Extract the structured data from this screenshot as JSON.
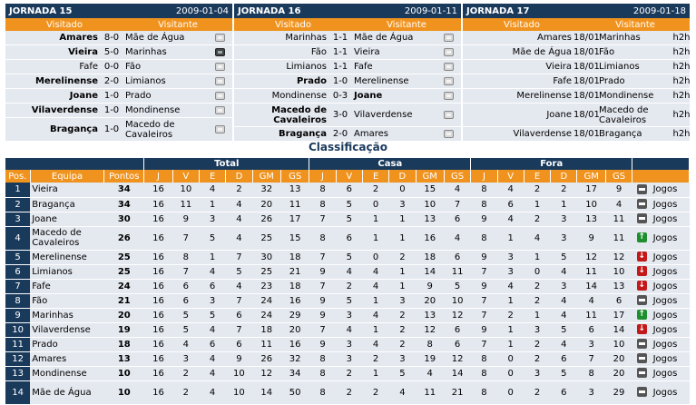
{
  "jornadas": [
    {
      "title": "JORNADA 15",
      "date": "2009-01-04",
      "col_home": "Visitado",
      "col_away": "Visitante",
      "games": [
        {
          "home": "Amares",
          "result": "8-0",
          "away": "Mãe de Água",
          "home_bold": true,
          "away_bold": false,
          "icon": "tv-off-icon",
          "tall": false
        },
        {
          "home": "Vieira",
          "result": "5-0",
          "away": "Marinhas",
          "home_bold": true,
          "away_bold": false,
          "icon": "tv-on-icon",
          "tall": false
        },
        {
          "home": "Fafe",
          "result": "0-0",
          "away": "Fão",
          "home_bold": false,
          "away_bold": false,
          "icon": "tv-off-icon",
          "tall": false
        },
        {
          "home": "Merelinense",
          "result": "2-0",
          "away": "Limianos",
          "home_bold": true,
          "away_bold": false,
          "icon": "tv-off-icon",
          "tall": false
        },
        {
          "home": "Joane",
          "result": "1-0",
          "away": "Prado",
          "home_bold": true,
          "away_bold": false,
          "icon": "tv-off-icon",
          "tall": false
        },
        {
          "home": "Vilaverdense",
          "result": "1-0",
          "away": "Mondinense",
          "home_bold": true,
          "away_bold": false,
          "icon": "tv-off-icon",
          "tall": false
        },
        {
          "home": "Bragança",
          "result": "1-0",
          "away": "Macedo de Cavaleiros",
          "home_bold": true,
          "away_bold": false,
          "icon": "tv-off-icon",
          "tall": true
        }
      ]
    },
    {
      "title": "JORNADA 16",
      "date": "2009-01-11",
      "col_home": "Visitado",
      "col_away": "Visitante",
      "games": [
        {
          "home": "Marinhas",
          "result": "1-1",
          "away": "Mãe de Água",
          "home_bold": false,
          "away_bold": false,
          "icon": "tv-off-icon",
          "tall": false
        },
        {
          "home": "Fão",
          "result": "1-1",
          "away": "Vieira",
          "home_bold": false,
          "away_bold": false,
          "icon": "tv-off-icon",
          "tall": false
        },
        {
          "home": "Limianos",
          "result": "1-1",
          "away": "Fafe",
          "home_bold": false,
          "away_bold": false,
          "icon": "tv-off-icon",
          "tall": false
        },
        {
          "home": "Prado",
          "result": "1-0",
          "away": "Merelinense",
          "home_bold": true,
          "away_bold": false,
          "icon": "tv-off-icon",
          "tall": false
        },
        {
          "home": "Mondinense",
          "result": "0-3",
          "away": "Joane",
          "home_bold": false,
          "away_bold": true,
          "icon": "tv-off-icon",
          "tall": false
        },
        {
          "home": "Macedo de Cavaleiros",
          "result": "3-0",
          "away": "Vilaverdense",
          "home_bold": true,
          "away_bold": false,
          "icon": "tv-off-icon",
          "tall": true
        },
        {
          "home": "Bragança",
          "result": "2-0",
          "away": "Amares",
          "home_bold": true,
          "away_bold": false,
          "icon": "tv-off-icon",
          "tall": false
        }
      ]
    },
    {
      "title": "JORNADA 17",
      "date": "2009-01-18",
      "col_home": "Visitado",
      "col_away": "Visitante",
      "games": [
        {
          "home": "Amares",
          "result": "18/01",
          "away": "Marinhas",
          "home_bold": false,
          "away_bold": false,
          "link": "h2h",
          "tall": false
        },
        {
          "home": "Mãe de Água",
          "result": "18/01",
          "away": "Fão",
          "home_bold": false,
          "away_bold": false,
          "link": "h2h",
          "tall": false
        },
        {
          "home": "Vieira",
          "result": "18/01",
          "away": "Limianos",
          "home_bold": false,
          "away_bold": false,
          "link": "h2h",
          "tall": false
        },
        {
          "home": "Fafe",
          "result": "18/01",
          "away": "Prado",
          "home_bold": false,
          "away_bold": false,
          "link": "h2h",
          "tall": false
        },
        {
          "home": "Merelinense",
          "result": "18/01",
          "away": "Mondinense",
          "home_bold": false,
          "away_bold": false,
          "link": "h2h",
          "tall": false
        },
        {
          "home": "Joane",
          "result": "18/01",
          "away": "Macedo de Cavaleiros",
          "home_bold": false,
          "away_bold": false,
          "link": "h2h",
          "tall": true
        },
        {
          "home": "Vilaverdense",
          "result": "18/01",
          "away": "Bragança",
          "home_bold": false,
          "away_bold": false,
          "link": "h2h",
          "tall": false
        }
      ]
    }
  ],
  "classificacao": {
    "title": "Classificação",
    "groups": {
      "total": "Total",
      "casa": "Casa",
      "fora": "Fora"
    },
    "headers": [
      "Pos.",
      "Equipa",
      "Pontos",
      "J",
      "V",
      "E",
      "D",
      "GM",
      "GS",
      "J",
      "V",
      "E",
      "D",
      "GM",
      "GS",
      "J",
      "V",
      "E",
      "D",
      "GM",
      "GS"
    ],
    "link_label": "Jogos",
    "rows": [
      {
        "pos": "1",
        "team": "Vieira",
        "pts": "34",
        "total": [
          "16",
          "10",
          "4",
          "2",
          "32",
          "13"
        ],
        "casa": [
          "8",
          "6",
          "2",
          "0",
          "15",
          "4"
        ],
        "fora": [
          "8",
          "4",
          "2",
          "2",
          "17",
          "9"
        ],
        "trend": "same"
      },
      {
        "pos": "2",
        "team": "Bragança",
        "pts": "34",
        "total": [
          "16",
          "11",
          "1",
          "4",
          "20",
          "11"
        ],
        "casa": [
          "8",
          "5",
          "0",
          "3",
          "10",
          "7"
        ],
        "fora": [
          "8",
          "6",
          "1",
          "1",
          "10",
          "4"
        ],
        "trend": "same"
      },
      {
        "pos": "3",
        "team": "Joane",
        "pts": "30",
        "total": [
          "16",
          "9",
          "3",
          "4",
          "26",
          "17"
        ],
        "casa": [
          "7",
          "5",
          "1",
          "1",
          "13",
          "6"
        ],
        "fora": [
          "9",
          "4",
          "2",
          "3",
          "13",
          "11"
        ],
        "trend": "same"
      },
      {
        "pos": "4",
        "team": "Macedo de Cavaleiros",
        "pts": "26",
        "total": [
          "16",
          "7",
          "5",
          "4",
          "25",
          "15"
        ],
        "casa": [
          "8",
          "6",
          "1",
          "1",
          "16",
          "4"
        ],
        "fora": [
          "8",
          "1",
          "4",
          "3",
          "9",
          "11"
        ],
        "trend": "up",
        "tall": true
      },
      {
        "pos": "5",
        "team": "Merelinense",
        "pts": "25",
        "total": [
          "16",
          "8",
          "1",
          "7",
          "30",
          "18"
        ],
        "casa": [
          "7",
          "5",
          "0",
          "2",
          "18",
          "6"
        ],
        "fora": [
          "9",
          "3",
          "1",
          "5",
          "12",
          "12"
        ],
        "trend": "down"
      },
      {
        "pos": "6",
        "team": "Limianos",
        "pts": "25",
        "total": [
          "16",
          "7",
          "4",
          "5",
          "25",
          "21"
        ],
        "casa": [
          "9",
          "4",
          "4",
          "1",
          "14",
          "11"
        ],
        "fora": [
          "7",
          "3",
          "0",
          "4",
          "11",
          "10"
        ],
        "trend": "down"
      },
      {
        "pos": "7",
        "team": "Fafe",
        "pts": "24",
        "total": [
          "16",
          "6",
          "6",
          "4",
          "23",
          "18"
        ],
        "casa": [
          "7",
          "2",
          "4",
          "1",
          "9",
          "5"
        ],
        "fora": [
          "9",
          "4",
          "2",
          "3",
          "14",
          "13"
        ],
        "trend": "down"
      },
      {
        "pos": "8",
        "team": "Fão",
        "pts": "21",
        "total": [
          "16",
          "6",
          "3",
          "7",
          "24",
          "16"
        ],
        "casa": [
          "9",
          "5",
          "1",
          "3",
          "20",
          "10"
        ],
        "fora": [
          "7",
          "1",
          "2",
          "4",
          "4",
          "6"
        ],
        "trend": "same"
      },
      {
        "pos": "9",
        "team": "Marinhas",
        "pts": "20",
        "total": [
          "16",
          "5",
          "5",
          "6",
          "24",
          "29"
        ],
        "casa": [
          "9",
          "3",
          "4",
          "2",
          "13",
          "12"
        ],
        "fora": [
          "7",
          "2",
          "1",
          "4",
          "11",
          "17"
        ],
        "trend": "up"
      },
      {
        "pos": "10",
        "team": "Vilaverdense",
        "pts": "19",
        "total": [
          "16",
          "5",
          "4",
          "7",
          "18",
          "20"
        ],
        "casa": [
          "7",
          "4",
          "1",
          "2",
          "12",
          "6"
        ],
        "fora": [
          "9",
          "1",
          "3",
          "5",
          "6",
          "14"
        ],
        "trend": "down"
      },
      {
        "pos": "11",
        "team": "Prado",
        "pts": "18",
        "total": [
          "16",
          "4",
          "6",
          "6",
          "11",
          "16"
        ],
        "casa": [
          "9",
          "3",
          "4",
          "2",
          "8",
          "6"
        ],
        "fora": [
          "7",
          "1",
          "2",
          "4",
          "3",
          "10"
        ],
        "trend": "same"
      },
      {
        "pos": "12",
        "team": "Amares",
        "pts": "13",
        "total": [
          "16",
          "3",
          "4",
          "9",
          "26",
          "32"
        ],
        "casa": [
          "8",
          "3",
          "2",
          "3",
          "19",
          "12"
        ],
        "fora": [
          "8",
          "0",
          "2",
          "6",
          "7",
          "20"
        ],
        "trend": "same"
      },
      {
        "pos": "13",
        "team": "Mondinense",
        "pts": "10",
        "total": [
          "16",
          "2",
          "4",
          "10",
          "12",
          "34"
        ],
        "casa": [
          "8",
          "2",
          "1",
          "5",
          "4",
          "14"
        ],
        "fora": [
          "8",
          "0",
          "3",
          "5",
          "8",
          "20"
        ],
        "trend": "same"
      },
      {
        "pos": "14",
        "team": "Mãe de Água",
        "pts": "10",
        "total": [
          "16",
          "2",
          "4",
          "10",
          "14",
          "50"
        ],
        "casa": [
          "8",
          "2",
          "2",
          "4",
          "11",
          "21"
        ],
        "fora": [
          "8",
          "0",
          "2",
          "6",
          "3",
          "29"
        ],
        "trend": "same",
        "tall": true
      }
    ]
  },
  "colors": {
    "navy": "#1a3a5c",
    "orange": "#f0931e",
    "row_bg": "#e4e8ef",
    "up": "#1e8f2e",
    "down": "#c21a1a"
  }
}
